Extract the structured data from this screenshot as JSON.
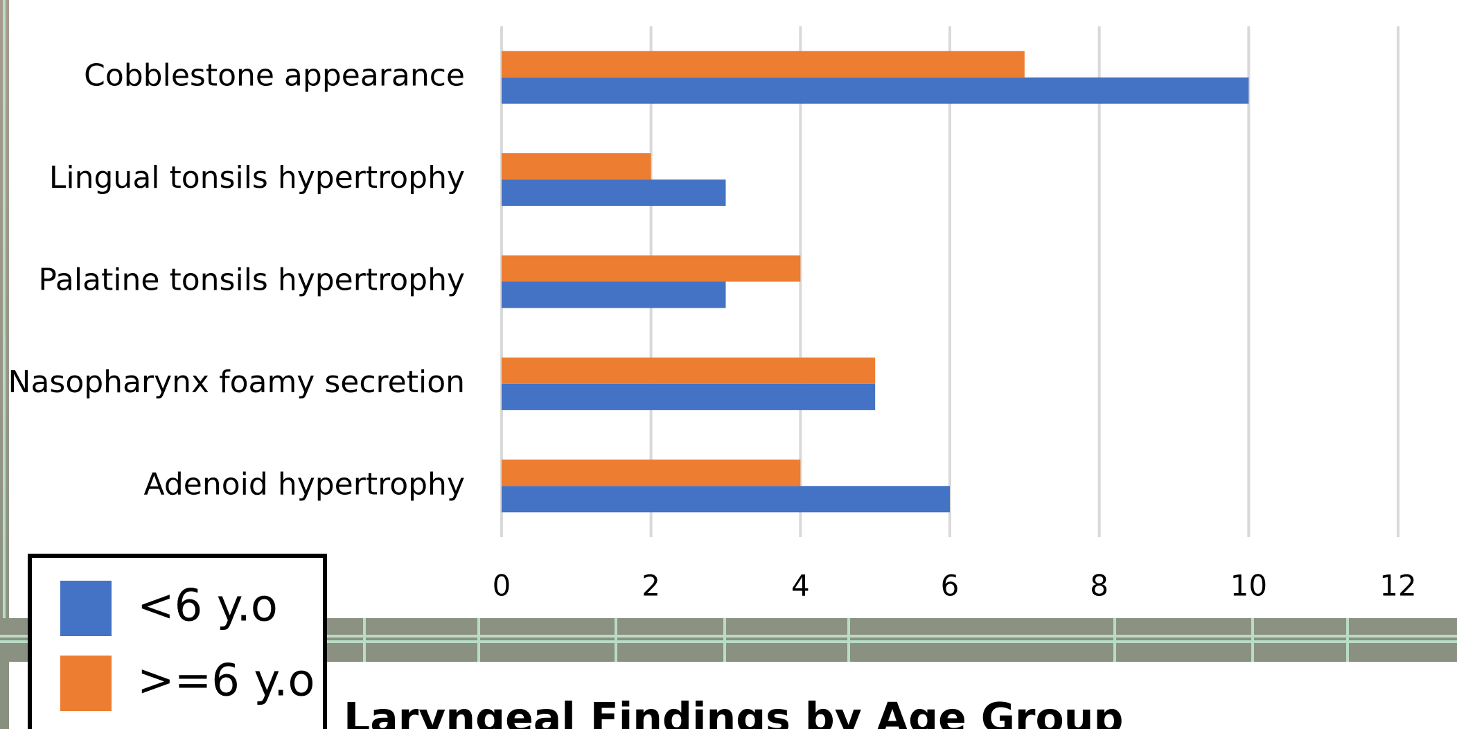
{
  "chart_data": {
    "type": "bar",
    "orientation": "horizontal",
    "categories": [
      "Cobblestone appearance",
      "Lingual tonsils hypertrophy",
      "Palatine tonsils hypertrophy",
      "Nasopharynx foamy secretion",
      "Adenoid hypertrophy"
    ],
    "series": [
      {
        "name": "<6 y.o",
        "color": "#4472c4",
        "values": [
          10,
          3,
          3,
          5,
          6
        ]
      },
      {
        "name": ">=6 y.o",
        "color": "#ed7d31",
        "values": [
          7,
          2,
          4,
          5,
          4
        ]
      }
    ],
    "xlim": [
      0,
      12
    ],
    "xticks": [
      0,
      2,
      4,
      6,
      8,
      10,
      12
    ],
    "grid": true
  },
  "next_chart_title": "Laryngeal Findings by Age Group"
}
